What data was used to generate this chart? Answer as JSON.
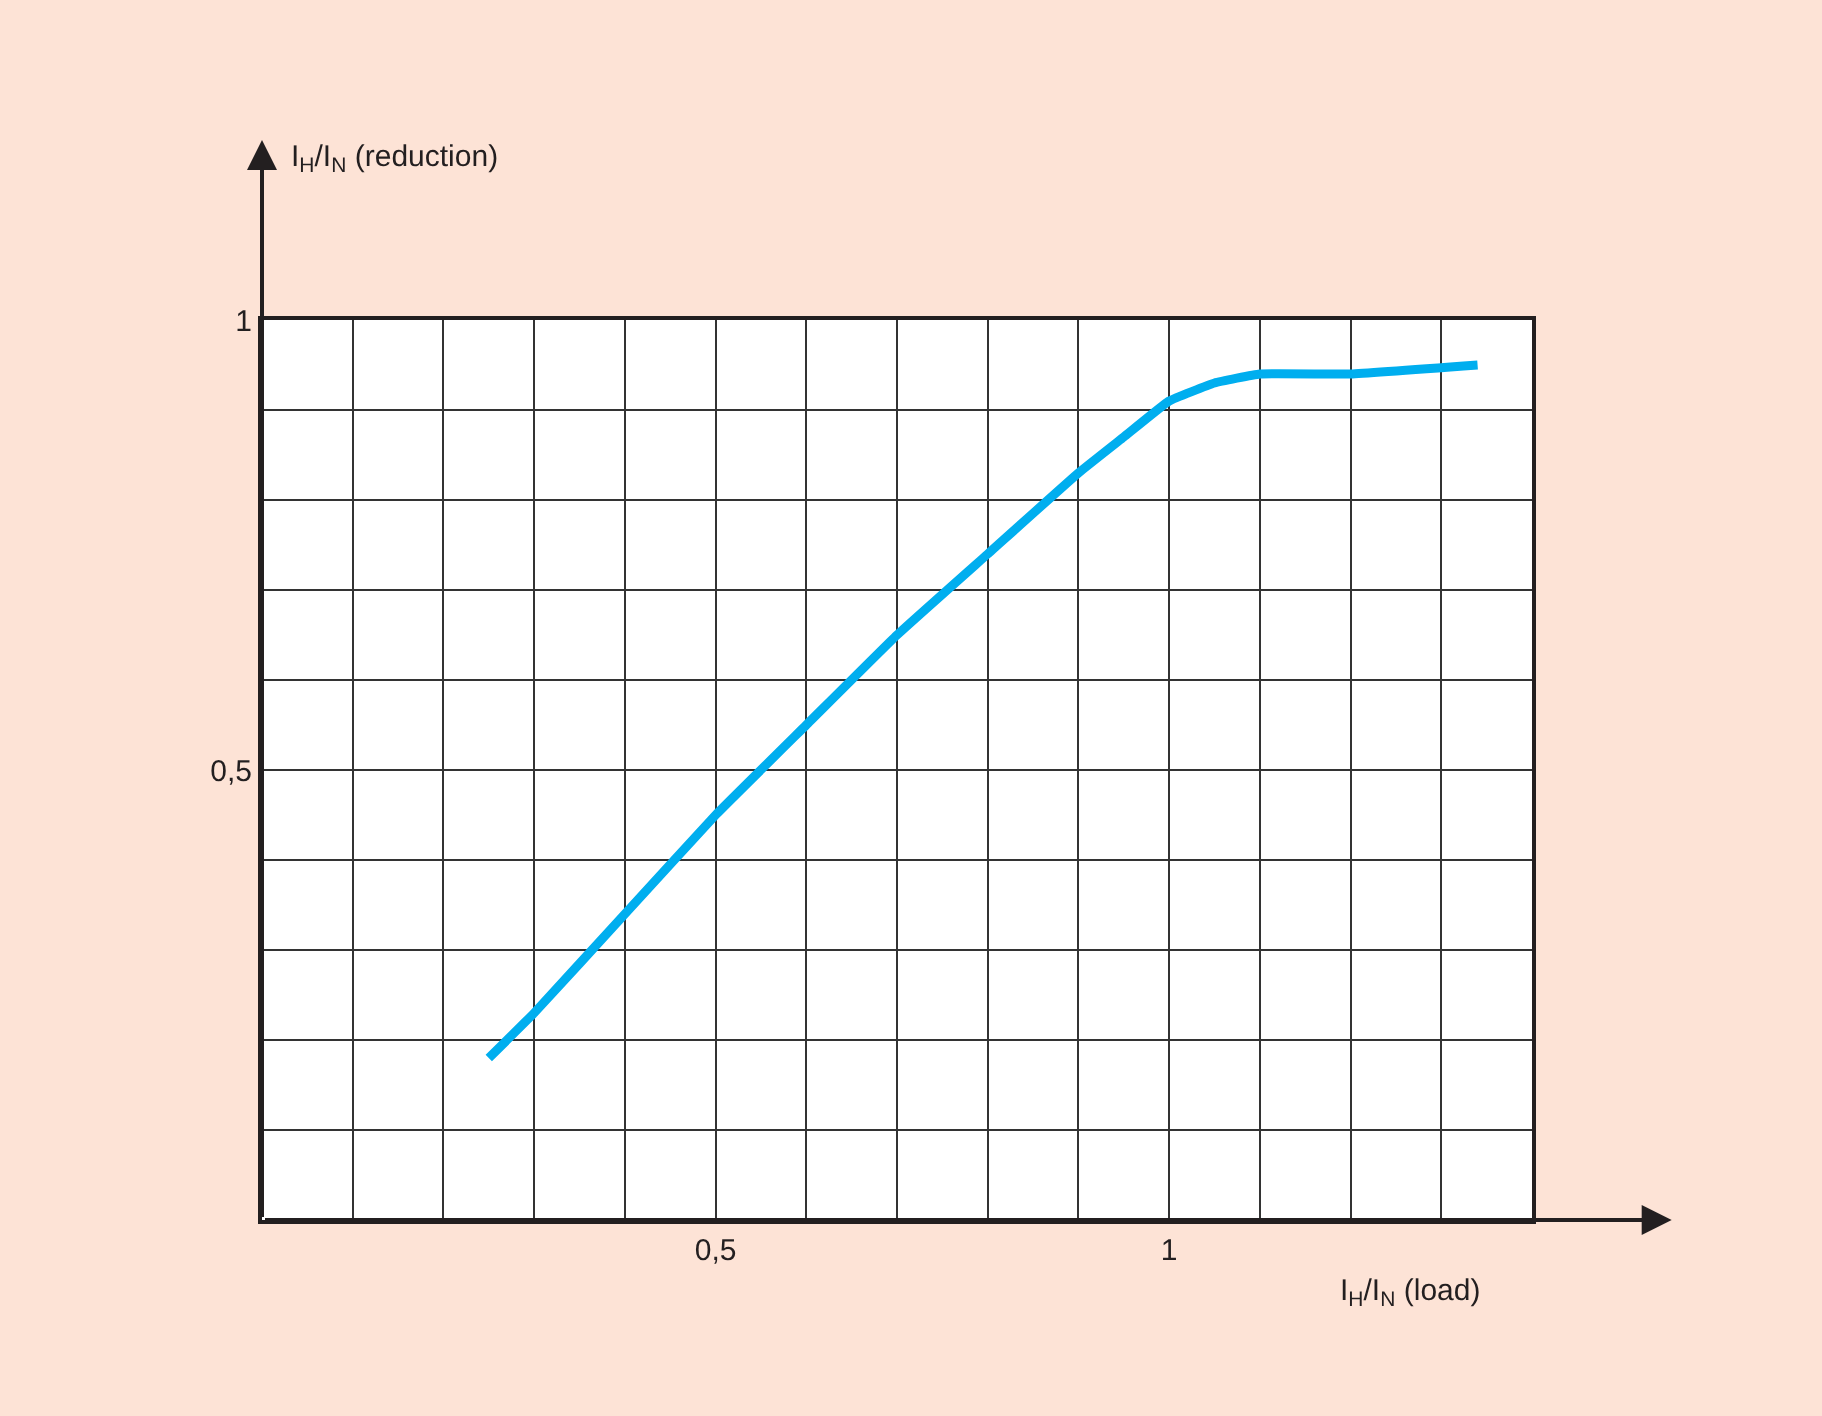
{
  "chart_data": {
    "type": "line",
    "xlabel": "I$_{H}$/I$_{N}$ (load)",
    "ylabel": "I$_{H}$/I$_{N}$ (reduction)",
    "x": [
      0.25,
      0.3,
      0.4,
      0.5,
      0.6,
      0.7,
      0.8,
      0.9,
      0.95,
      1.0,
      1.05,
      1.1,
      1.2,
      1.34
    ],
    "series": [
      {
        "color": "#00aeef",
        "values": [
          0.18,
          0.23,
          0.34,
          0.45,
          0.55,
          0.65,
          0.74,
          0.83,
          0.87,
          0.91,
          0.93,
          0.94,
          0.94,
          0.95
        ]
      }
    ],
    "xlim": [
      0,
      1.4
    ],
    "ylim": [
      0,
      1
    ],
    "xticks": [
      {
        "value": 0.1,
        "label": null
      },
      {
        "value": 0.2,
        "label": null
      },
      {
        "value": 0.3,
        "label": null
      },
      {
        "value": 0.4,
        "label": null
      },
      {
        "value": 0.5,
        "label": "0,5"
      },
      {
        "value": 0.6,
        "label": null
      },
      {
        "value": 0.7,
        "label": null
      },
      {
        "value": 0.8,
        "label": null
      },
      {
        "value": 0.9,
        "label": null
      },
      1,
      {
        "value": 1.1,
        "label": null
      },
      {
        "value": 1.2,
        "label": null
      },
      {
        "value": 1.3,
        "label": null
      },
      {
        "value": 1.4,
        "label": null
      }
    ],
    "yticks": [
      {
        "value": 0.1,
        "label": null
      },
      {
        "value": 0.2,
        "label": null
      },
      {
        "value": 0.3,
        "label": null
      },
      {
        "value": 0.4,
        "label": null
      },
      {
        "value": 0.5,
        "label": "0,5"
      },
      {
        "value": 0.6,
        "label": null
      },
      {
        "value": 0.7,
        "label": null
      },
      {
        "value": 0.8,
        "label": null
      },
      {
        "value": 0.9,
        "label": null
      },
      1
    ],
    "grid": true,
    "marker": "none",
    "line_style": "solid",
    "legend": false
  }
}
